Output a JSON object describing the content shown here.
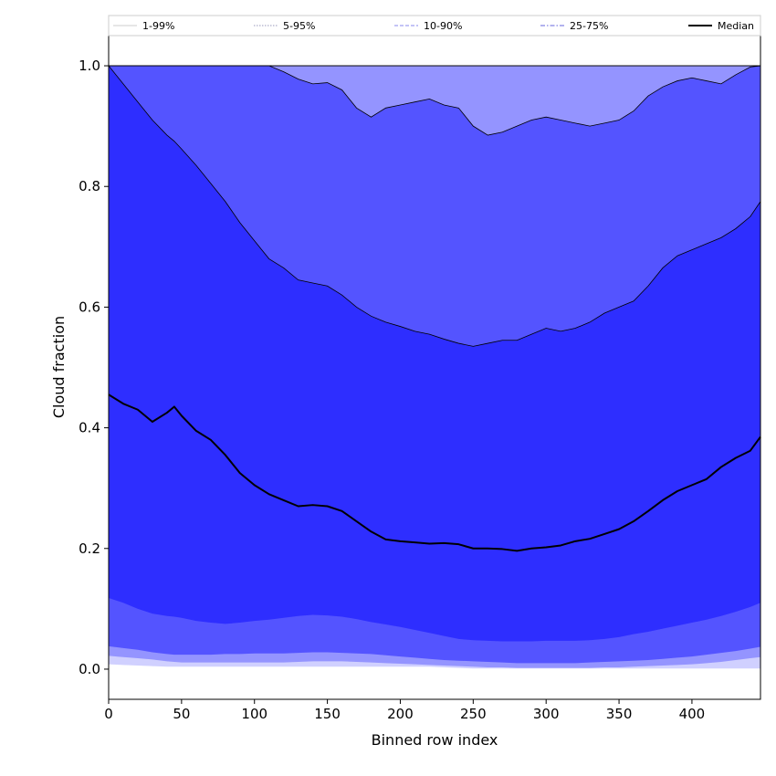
{
  "chart_data": {
    "type": "area",
    "xlabel": "Binned row index",
    "ylabel": "Cloud fraction",
    "xlim": [
      0,
      447
    ],
    "ylim": [
      -0.05,
      1.05
    ],
    "xticks": [
      0,
      50,
      100,
      150,
      200,
      250,
      300,
      350,
      400
    ],
    "yticks": [
      0.0,
      0.2,
      0.4,
      0.6,
      0.8,
      1.0
    ],
    "grid": false,
    "legend_position": "top, spanning full width above plot",
    "x": [
      0,
      10,
      20,
      30,
      40,
      45,
      50,
      60,
      70,
      80,
      90,
      100,
      110,
      120,
      130,
      140,
      150,
      160,
      170,
      180,
      190,
      200,
      210,
      220,
      230,
      240,
      250,
      260,
      270,
      280,
      290,
      300,
      310,
      320,
      330,
      340,
      350,
      360,
      370,
      380,
      390,
      400,
      410,
      420,
      430,
      440,
      447
    ],
    "series": [
      {
        "name": "1-99%",
        "color": "#d0d0ff",
        "line_color": "#cccccc",
        "line_style": "solid",
        "lower": [
          0.008,
          0.007,
          0.006,
          0.005,
          0.004,
          0.004,
          0.004,
          0.004,
          0.004,
          0.004,
          0.004,
          0.004,
          0.004,
          0.004,
          0.004,
          0.004,
          0.004,
          0.004,
          0.004,
          0.004,
          0.004,
          0.004,
          0.004,
          0.004,
          0.003,
          0.002,
          0.001,
          0.001,
          0.001,
          0.001,
          0.001,
          0.001,
          0.001,
          0.001,
          0.001,
          0.001,
          0.001,
          0.001,
          0.001,
          0.001,
          0.001,
          0.001,
          0.001,
          0.001,
          0.001,
          0.001,
          0.001
        ],
        "upper": [
          1.0,
          1.0,
          1.0,
          1.0,
          1.0,
          1.0,
          1.0,
          1.0,
          1.0,
          1.0,
          1.0,
          1.0,
          1.0,
          1.0,
          1.0,
          1.0,
          1.0,
          1.0,
          1.0,
          1.0,
          1.0,
          1.0,
          1.0,
          1.0,
          1.0,
          1.0,
          1.0,
          1.0,
          1.0,
          1.0,
          1.0,
          1.0,
          1.0,
          1.0,
          1.0,
          1.0,
          1.0,
          1.0,
          1.0,
          1.0,
          1.0,
          1.0,
          1.0,
          1.0,
          1.0,
          1.0,
          1.0
        ]
      },
      {
        "name": "5-95%",
        "color": "#9494ff",
        "line_color": "#9999bb",
        "line_style": "dotted",
        "lower": [
          0.022,
          0.02,
          0.018,
          0.016,
          0.013,
          0.012,
          0.011,
          0.011,
          0.011,
          0.011,
          0.011,
          0.011,
          0.011,
          0.011,
          0.012,
          0.013,
          0.013,
          0.013,
          0.012,
          0.011,
          0.01,
          0.009,
          0.008,
          0.007,
          0.006,
          0.005,
          0.004,
          0.003,
          0.003,
          0.002,
          0.002,
          0.002,
          0.002,
          0.002,
          0.002,
          0.003,
          0.003,
          0.004,
          0.005,
          0.006,
          0.007,
          0.008,
          0.01,
          0.012,
          0.015,
          0.018,
          0.02
        ],
        "upper": [
          1.0,
          1.0,
          1.0,
          1.0,
          1.0,
          1.0,
          1.0,
          1.0,
          1.0,
          1.0,
          1.0,
          1.0,
          1.0,
          1.0,
          1.0,
          1.0,
          1.0,
          1.0,
          1.0,
          1.0,
          1.0,
          1.0,
          1.0,
          1.0,
          1.0,
          1.0,
          1.0,
          1.0,
          1.0,
          1.0,
          1.0,
          1.0,
          1.0,
          1.0,
          1.0,
          1.0,
          1.0,
          1.0,
          1.0,
          1.0,
          1.0,
          1.0,
          1.0,
          1.0,
          1.0,
          1.0,
          1.0
        ]
      },
      {
        "name": "10-90%",
        "color": "#5454ff",
        "line_color": "#8888ee",
        "line_style": "dashed",
        "lower": [
          0.038,
          0.035,
          0.032,
          0.028,
          0.025,
          0.024,
          0.024,
          0.024,
          0.024,
          0.025,
          0.025,
          0.026,
          0.026,
          0.026,
          0.027,
          0.028,
          0.028,
          0.027,
          0.026,
          0.025,
          0.023,
          0.021,
          0.019,
          0.017,
          0.015,
          0.014,
          0.013,
          0.012,
          0.011,
          0.01,
          0.01,
          0.01,
          0.01,
          0.01,
          0.011,
          0.012,
          0.013,
          0.014,
          0.015,
          0.017,
          0.019,
          0.021,
          0.024,
          0.027,
          0.03,
          0.034,
          0.037
        ],
        "upper": [
          1.0,
          1.0,
          1.0,
          1.0,
          1.0,
          1.0,
          1.0,
          1.0,
          1.0,
          1.0,
          1.0,
          1.0,
          1.0,
          0.99,
          0.978,
          0.97,
          0.972,
          0.96,
          0.93,
          0.915,
          0.93,
          0.935,
          0.94,
          0.945,
          0.935,
          0.93,
          0.9,
          0.885,
          0.89,
          0.9,
          0.91,
          0.915,
          0.91,
          0.905,
          0.9,
          0.905,
          0.91,
          0.925,
          0.95,
          0.965,
          0.975,
          0.98,
          0.975,
          0.97,
          0.985,
          0.998,
          1.0
        ]
      },
      {
        "name": "25-75%",
        "color": "#2e2eff",
        "line_color": "#6666dd",
        "line_style": "dashdot",
        "lower": [
          0.118,
          0.11,
          0.1,
          0.092,
          0.088,
          0.087,
          0.085,
          0.08,
          0.077,
          0.075,
          0.077,
          0.08,
          0.082,
          0.085,
          0.088,
          0.09,
          0.089,
          0.087,
          0.083,
          0.078,
          0.074,
          0.07,
          0.065,
          0.06,
          0.055,
          0.05,
          0.048,
          0.047,
          0.046,
          0.046,
          0.046,
          0.047,
          0.047,
          0.047,
          0.048,
          0.05,
          0.053,
          0.058,
          0.062,
          0.067,
          0.072,
          0.077,
          0.082,
          0.088,
          0.095,
          0.103,
          0.11
        ],
        "upper": [
          1.0,
          0.97,
          0.94,
          0.91,
          0.885,
          0.875,
          0.862,
          0.835,
          0.805,
          0.775,
          0.74,
          0.71,
          0.68,
          0.665,
          0.645,
          0.64,
          0.635,
          0.62,
          0.6,
          0.585,
          0.575,
          0.568,
          0.56,
          0.555,
          0.547,
          0.54,
          0.535,
          0.54,
          0.545,
          0.545,
          0.555,
          0.565,
          0.56,
          0.565,
          0.575,
          0.59,
          0.6,
          0.61,
          0.635,
          0.665,
          0.685,
          0.695,
          0.705,
          0.715,
          0.73,
          0.75,
          0.775
        ]
      }
    ],
    "median": {
      "name": "Median",
      "color": "#000000",
      "values": [
        0.455,
        0.44,
        0.43,
        0.41,
        0.425,
        0.435,
        0.42,
        0.395,
        0.38,
        0.355,
        0.325,
        0.305,
        0.29,
        0.28,
        0.27,
        0.272,
        0.27,
        0.262,
        0.245,
        0.228,
        0.215,
        0.212,
        0.21,
        0.208,
        0.209,
        0.207,
        0.2,
        0.2,
        0.199,
        0.196,
        0.2,
        0.202,
        0.205,
        0.212,
        0.216,
        0.224,
        0.232,
        0.245,
        0.262,
        0.28,
        0.295,
        0.305,
        0.315,
        0.335,
        0.35,
        0.362,
        0.385
      ]
    }
  }
}
